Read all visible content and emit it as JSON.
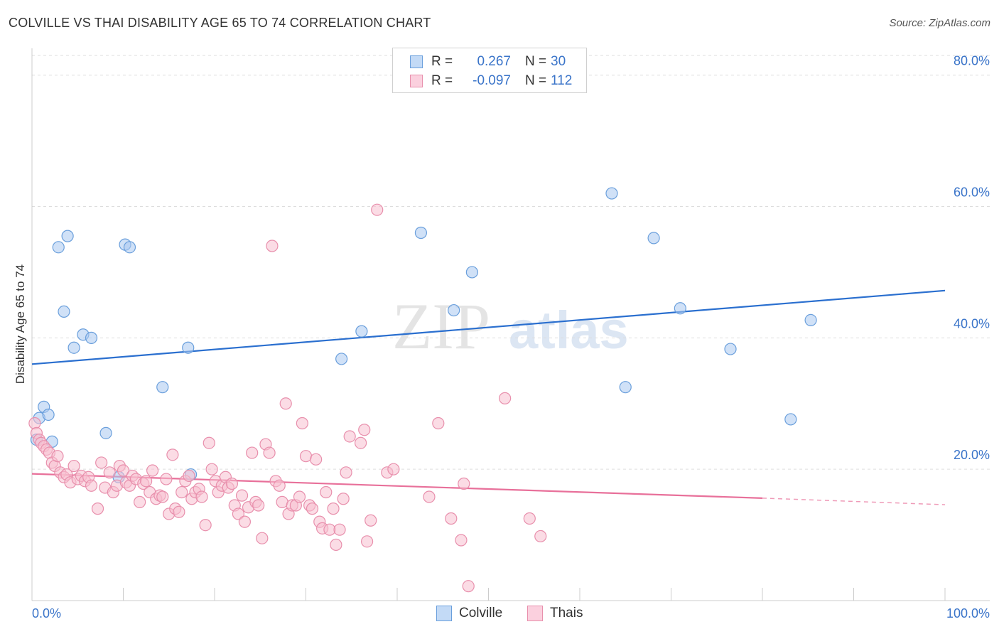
{
  "header": {
    "title": "COLVILLE VS THAI DISABILITY AGE 65 TO 74 CORRELATION CHART",
    "source": "Source: ZipAtlas.com"
  },
  "watermark": {
    "zip": "ZIP",
    "atlas": "atlas"
  },
  "legend_top": {
    "rows": [
      {
        "r_label": "R =",
        "r_value": "0.267",
        "n_label": "N =",
        "n_value": "30"
      },
      {
        "r_label": "R =",
        "r_value": "-0.097",
        "n_label": "N =",
        "n_value": "112"
      }
    ]
  },
  "legend_bottom": {
    "items": [
      {
        "label": "Colville"
      },
      {
        "label": "Thais"
      }
    ]
  },
  "colors": {
    "colville_fill": "#a9c9f0",
    "colville_stroke": "#6a9fdc",
    "colville_line": "#2a6fcf",
    "thai_fill": "#f7bfd0",
    "thai_stroke": "#e88fac",
    "thai_line": "#e8709a",
    "grid": "#dddddd",
    "axis_label": "#3a74c9"
  },
  "chart_data": {
    "type": "scatter",
    "title": "COLVILLE VS THAI DISABILITY AGE 65 TO 74 CORRELATION CHART",
    "xlabel": "",
    "ylabel": "Disability Age 65 to 74",
    "xlim": [
      0,
      100
    ],
    "ylim": [
      0,
      83
    ],
    "x_tick_labels": [
      "0.0%",
      "100.0%"
    ],
    "y_ticks": [
      20,
      40,
      60,
      80
    ],
    "y_tick_labels": [
      "20.0%",
      "40.0%",
      "60.0%",
      "80.0%"
    ],
    "grid": true,
    "legend_position": "top-center",
    "series": [
      {
        "name": "Colville",
        "r": 0.267,
        "n": 30,
        "trend": {
          "x0": 0,
          "y0": 36.0,
          "x1": 100,
          "y1": 47.2
        },
        "points": [
          [
            0.5,
            24.5
          ],
          [
            0.8,
            27.8
          ],
          [
            1.3,
            29.5
          ],
          [
            1.8,
            28.3
          ],
          [
            2.2,
            24.2
          ],
          [
            2.9,
            53.8
          ],
          [
            3.5,
            44.0
          ],
          [
            3.9,
            55.5
          ],
          [
            4.6,
            38.5
          ],
          [
            5.6,
            40.5
          ],
          [
            6.5,
            40.0
          ],
          [
            8.1,
            25.5
          ],
          [
            9.5,
            18.8
          ],
          [
            10.2,
            54.2
          ],
          [
            10.7,
            53.8
          ],
          [
            14.3,
            32.5
          ],
          [
            17.1,
            38.5
          ],
          [
            17.4,
            19.2
          ],
          [
            33.9,
            36.8
          ],
          [
            36.1,
            41.0
          ],
          [
            42.6,
            56.0
          ],
          [
            46.2,
            44.2
          ],
          [
            48.2,
            50.0
          ],
          [
            63.5,
            62.0
          ],
          [
            65.0,
            32.5
          ],
          [
            68.1,
            55.2
          ],
          [
            71.0,
            44.5
          ],
          [
            76.5,
            38.3
          ],
          [
            83.1,
            27.6
          ],
          [
            85.3,
            42.7
          ]
        ]
      },
      {
        "name": "Thais",
        "r": -0.097,
        "n": 112,
        "trend": {
          "x0": 0,
          "y0": 19.3,
          "x1": 80,
          "y1": 15.6
        },
        "trend_dashed": {
          "x0": 80,
          "y0": 15.6,
          "x1": 100,
          "y1": 14.6
        },
        "points": [
          [
            0.3,
            27.0
          ],
          [
            0.5,
            25.5
          ],
          [
            0.8,
            24.5
          ],
          [
            1.0,
            24.0
          ],
          [
            1.3,
            23.5
          ],
          [
            1.6,
            23.0
          ],
          [
            1.9,
            22.5
          ],
          [
            2.2,
            21.0
          ],
          [
            2.5,
            20.5
          ],
          [
            2.8,
            22.0
          ],
          [
            3.1,
            19.5
          ],
          [
            3.5,
            18.8
          ],
          [
            3.8,
            19.2
          ],
          [
            4.2,
            18.0
          ],
          [
            4.6,
            20.5
          ],
          [
            5.0,
            18.5
          ],
          [
            5.4,
            19.0
          ],
          [
            5.8,
            18.2
          ],
          [
            6.2,
            18.8
          ],
          [
            6.5,
            17.5
          ],
          [
            7.2,
            14.0
          ],
          [
            7.6,
            21.0
          ],
          [
            8.0,
            17.2
          ],
          [
            8.5,
            19.5
          ],
          [
            8.9,
            16.5
          ],
          [
            9.3,
            17.5
          ],
          [
            9.6,
            20.5
          ],
          [
            10.0,
            19.8
          ],
          [
            10.3,
            18.0
          ],
          [
            10.7,
            17.5
          ],
          [
            11.0,
            19.0
          ],
          [
            11.4,
            18.5
          ],
          [
            11.8,
            15.0
          ],
          [
            12.2,
            17.8
          ],
          [
            12.5,
            18.2
          ],
          [
            12.9,
            16.5
          ],
          [
            13.2,
            19.8
          ],
          [
            13.6,
            15.5
          ],
          [
            14.0,
            16.0
          ],
          [
            14.3,
            15.8
          ],
          [
            14.7,
            18.5
          ],
          [
            15.0,
            13.2
          ],
          [
            15.4,
            22.2
          ],
          [
            15.7,
            14.0
          ],
          [
            16.1,
            13.5
          ],
          [
            16.4,
            16.5
          ],
          [
            16.8,
            18.2
          ],
          [
            17.2,
            19.0
          ],
          [
            17.5,
            15.5
          ],
          [
            17.9,
            16.5
          ],
          [
            18.3,
            17.0
          ],
          [
            18.6,
            15.8
          ],
          [
            19.0,
            11.5
          ],
          [
            19.4,
            24.0
          ],
          [
            19.7,
            20.0
          ],
          [
            20.1,
            18.2
          ],
          [
            20.4,
            16.5
          ],
          [
            20.8,
            17.5
          ],
          [
            21.2,
            18.8
          ],
          [
            21.5,
            17.2
          ],
          [
            21.9,
            17.8
          ],
          [
            22.2,
            14.5
          ],
          [
            22.6,
            13.2
          ],
          [
            23.0,
            16.0
          ],
          [
            23.3,
            12.0
          ],
          [
            23.7,
            14.2
          ],
          [
            24.1,
            22.5
          ],
          [
            24.5,
            15.0
          ],
          [
            24.8,
            14.5
          ],
          [
            25.2,
            9.5
          ],
          [
            25.6,
            23.8
          ],
          [
            26.0,
            22.5
          ],
          [
            26.3,
            54.0
          ],
          [
            26.7,
            18.2
          ],
          [
            27.1,
            17.5
          ],
          [
            27.4,
            15.0
          ],
          [
            27.8,
            30.0
          ],
          [
            28.1,
            13.2
          ],
          [
            28.5,
            14.5
          ],
          [
            28.9,
            14.5
          ],
          [
            29.3,
            15.8
          ],
          [
            29.6,
            27.0
          ],
          [
            30.0,
            22.0
          ],
          [
            30.4,
            14.5
          ],
          [
            30.7,
            14.0
          ],
          [
            31.1,
            21.5
          ],
          [
            31.5,
            12.0
          ],
          [
            31.8,
            11.0
          ],
          [
            32.2,
            16.5
          ],
          [
            32.6,
            10.8
          ],
          [
            33.0,
            14.0
          ],
          [
            33.3,
            8.5
          ],
          [
            33.7,
            10.8
          ],
          [
            34.1,
            15.5
          ],
          [
            34.4,
            19.5
          ],
          [
            34.8,
            25.0
          ],
          [
            36.0,
            24.0
          ],
          [
            36.4,
            26.0
          ],
          [
            36.7,
            9.0
          ],
          [
            37.1,
            12.2
          ],
          [
            37.8,
            59.5
          ],
          [
            38.9,
            19.5
          ],
          [
            39.6,
            20.0
          ],
          [
            43.5,
            15.8
          ],
          [
            44.5,
            27.0
          ],
          [
            45.9,
            12.5
          ],
          [
            47.0,
            9.2
          ],
          [
            47.3,
            17.8
          ],
          [
            47.8,
            2.2
          ],
          [
            51.8,
            30.8
          ],
          [
            54.5,
            12.5
          ],
          [
            55.7,
            9.8
          ]
        ]
      }
    ]
  }
}
